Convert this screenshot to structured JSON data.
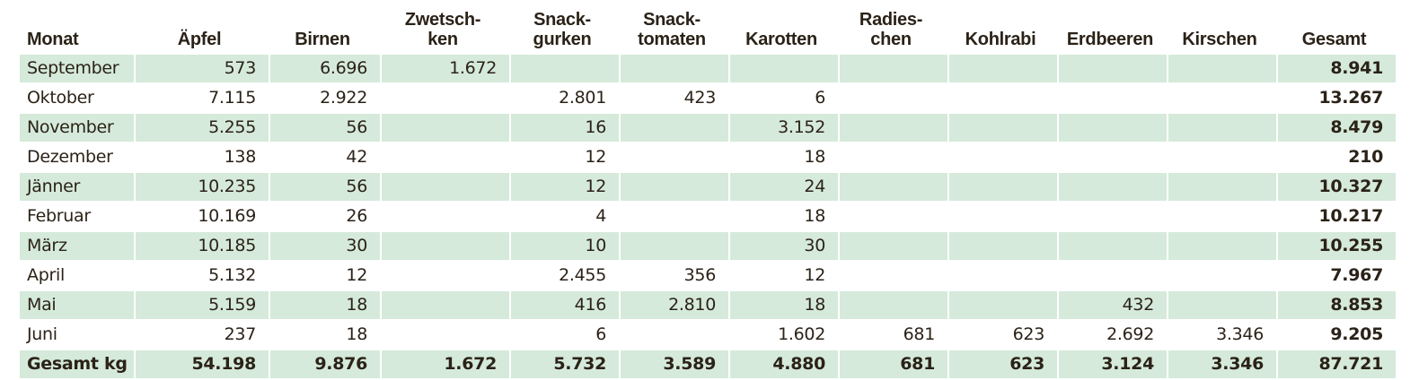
{
  "table": {
    "headers": [
      "Monat",
      "Äpfel",
      "Birnen",
      "Zwetsch-\nken",
      "Snack-\ngurken",
      "Snack-\ntomaten",
      "Karotten",
      "Radies-\nchen",
      "Kohlrabi",
      "Erdbeeren",
      "Kirschen",
      "Gesamt"
    ],
    "rows": [
      [
        "September",
        "573",
        "6.696",
        "1.672",
        "",
        "",
        "",
        "",
        "",
        "",
        "",
        "8.941"
      ],
      [
        "Oktober",
        "7.115",
        "2.922",
        "",
        "2.801",
        "423",
        "6",
        "",
        "",
        "",
        "",
        "13.267"
      ],
      [
        "November",
        "5.255",
        "56",
        "",
        "16",
        "",
        "3.152",
        "",
        "",
        "",
        "",
        "8.479"
      ],
      [
        "Dezember",
        "138",
        "42",
        "",
        "12",
        "",
        "18",
        "",
        "",
        "",
        "",
        "210"
      ],
      [
        "Jänner",
        "10.235",
        "56",
        "",
        "12",
        "",
        "24",
        "",
        "",
        "",
        "",
        "10.327"
      ],
      [
        "Februar",
        "10.169",
        "26",
        "",
        "4",
        "",
        "18",
        "",
        "",
        "",
        "",
        "10.217"
      ],
      [
        "März",
        "10.185",
        "30",
        "",
        "10",
        "",
        "30",
        "",
        "",
        "",
        "",
        "10.255"
      ],
      [
        "April",
        "5.132",
        "12",
        "",
        "2.455",
        "356",
        "12",
        "",
        "",
        "",
        "",
        "7.967"
      ],
      [
        "Mai",
        "5.159",
        "18",
        "",
        "416",
        "2.810",
        "18",
        "",
        "",
        "432",
        "",
        "8.853"
      ],
      [
        "Juni",
        "237",
        "18",
        "",
        "6",
        "",
        "1.602",
        "681",
        "623",
        "2.692",
        "3.346",
        "9.205"
      ]
    ],
    "total_row": [
      "Gesamt kg",
      "54.198",
      "9.876",
      "1.672",
      "5.732",
      "3.589",
      "4.880",
      "681",
      "623",
      "3.124",
      "3.346",
      "87.721"
    ]
  },
  "colors": {
    "stripe": "#d5eada",
    "text": "#2b2218"
  }
}
